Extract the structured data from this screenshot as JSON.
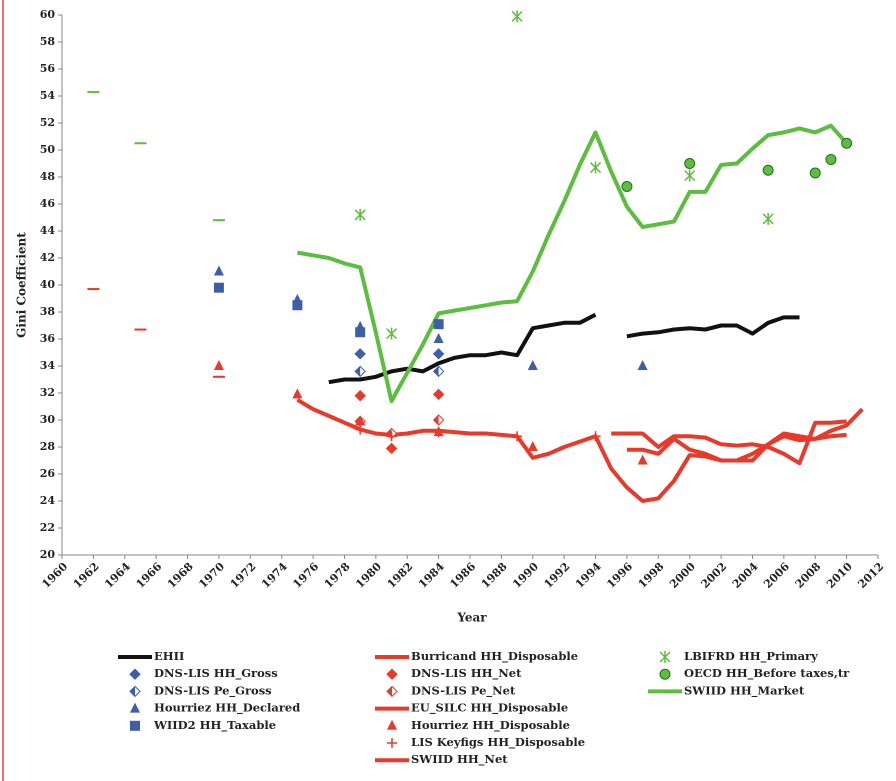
{
  "chart_data": {
    "type": "line",
    "y_label": "Gini Coefficient",
    "x_label": "Year",
    "xlim": [
      1960,
      2012
    ],
    "xticks": [
      1960,
      1962,
      1964,
      1966,
      1968,
      1970,
      1972,
      1974,
      1976,
      1978,
      1980,
      1982,
      1984,
      1986,
      1988,
      1990,
      1992,
      1994,
      1996,
      1998,
      2000,
      2002,
      2004,
      2006,
      2008,
      2010,
      2012
    ],
    "ylim": [
      20,
      60
    ],
    "yticks": [
      20,
      22,
      24,
      26,
      28,
      30,
      32,
      34,
      36,
      38,
      40,
      42,
      44,
      46,
      48,
      50,
      52,
      54,
      56,
      58,
      60
    ],
    "grid": false,
    "series": [
      {
        "name": "EHII",
        "color": "#111111",
        "marker": "line",
        "x": [
          1977,
          1978,
          1979,
          1980,
          1981,
          1982,
          1983,
          1984,
          1985,
          1986,
          1987,
          1988,
          1989,
          1990,
          1991,
          1992,
          1993,
          1994,
          1995,
          1996,
          1997,
          1998,
          1999,
          2000,
          2001,
          2002,
          2003,
          2004,
          2005,
          2006,
          2007
        ],
        "values": [
          32.8,
          33.0,
          33.0,
          33.2,
          33.6,
          33.8,
          33.6,
          34.2,
          34.6,
          34.8,
          34.8,
          35.0,
          34.8,
          36.8,
          37.0,
          37.2,
          37.2,
          37.8,
          null,
          36.2,
          36.4,
          36.5,
          36.7,
          36.8,
          36.7,
          37.0,
          37.0,
          36.4,
          37.2,
          37.6,
          37.6
        ]
      },
      {
        "name": "DNS-LIS HH_Gross",
        "color": "#3f5ea8",
        "marker": "diamond",
        "x": [
          1979,
          1984
        ],
        "values": [
          34.9,
          34.9
        ]
      },
      {
        "name": "DNS-LIS Pe_Gross",
        "color": "#3f5ea8",
        "marker": "diamond-open",
        "x": [
          1979,
          1984
        ],
        "values": [
          33.6,
          33.6
        ]
      },
      {
        "name": "Hourriez HH_Declared",
        "color": "#3f5ea8",
        "marker": "triangle",
        "x": [
          1970,
          1975,
          1979,
          1984,
          1990,
          1997
        ],
        "values": [
          41.0,
          38.9,
          36.9,
          36.0,
          34.0,
          34.0
        ]
      },
      {
        "name": "WIID2 HH_Taxable",
        "color": "#3f5ea8",
        "marker": "square",
        "x": [
          1970,
          1975,
          1979,
          1984
        ],
        "values": [
          39.8,
          38.5,
          36.5,
          37.1
        ]
      },
      {
        "name": "Burricand HH_Disposable",
        "color": "#e8392a",
        "marker": "line",
        "x": [
          1996,
          1997,
          1998,
          1999,
          2000,
          2001,
          2002,
          2003,
          2004,
          2005,
          2006,
          2007,
          2008,
          2009,
          2010,
          2011
        ],
        "values": [
          27.8,
          27.8,
          27.5,
          28.6,
          27.8,
          27.5,
          27.0,
          27.0,
          27.0,
          28.2,
          29.0,
          28.8,
          28.6,
          29.2,
          29.6,
          30.8
        ]
      },
      {
        "name": "DNS-LIS HH_Net",
        "color": "#e8392a",
        "marker": "diamond",
        "x": [
          1979,
          1981,
          1984
        ],
        "values": [
          31.8,
          27.9,
          31.9
        ]
      },
      {
        "name": "DNS-LIS Pe_Net",
        "color": "#e8392a",
        "marker": "diamond-open",
        "x": [
          1979,
          1981,
          1984
        ],
        "values": [
          29.9,
          29.0,
          30.0
        ]
      },
      {
        "name": "EU_SILC HH_Disposable",
        "color": "#e8392a",
        "marker": "line",
        "x": [
          1995,
          1996,
          1997,
          1998,
          1999,
          2000,
          2001,
          2002,
          2003,
          2004,
          2005,
          2006,
          2007,
          2008,
          2009,
          2010
        ],
        "values": [
          29.0,
          29.0,
          29.0,
          28.0,
          28.8,
          28.8,
          28.7,
          28.2,
          28.1,
          28.2,
          28.0,
          27.5,
          26.8,
          29.8,
          29.8,
          29.9
        ]
      },
      {
        "name": "Hourriez HH_Disposable",
        "color": "#e8392a",
        "marker": "triangle",
        "x": [
          1970,
          1975,
          1979,
          1984,
          1990,
          1997
        ],
        "values": [
          34.0,
          31.9,
          29.9,
          29.1,
          28.0,
          27.0
        ]
      },
      {
        "name": "LIS Keyfigs HH_Disposable",
        "color": "#e8392a",
        "marker": "plus",
        "x": [
          1979,
          1981,
          1984,
          1989,
          1994
        ],
        "values": [
          29.3,
          28.8,
          29.1,
          28.8,
          28.8
        ]
      },
      {
        "name": "SWIID HH_Net",
        "color": "#e8392a",
        "marker": "line",
        "x": [
          1975,
          1976,
          1977,
          1978,
          1979,
          1980,
          1981,
          1982,
          1983,
          1984,
          1985,
          1986,
          1987,
          1988,
          1989,
          1990,
          1991,
          1992,
          1993,
          1994,
          1995,
          1996,
          1997,
          1998,
          1999,
          2000,
          2001,
          2002,
          2003,
          2004,
          2005,
          2006,
          2007,
          2008,
          2009,
          2010
        ],
        "values": [
          31.5,
          30.8,
          30.3,
          29.8,
          29.3,
          29.0,
          28.9,
          29.0,
          29.2,
          29.2,
          29.1,
          29.0,
          29.0,
          28.9,
          28.8,
          27.2,
          27.5,
          28.0,
          28.4,
          28.8,
          26.4,
          25.0,
          24.0,
          24.2,
          25.5,
          27.4,
          27.3,
          27.0,
          27.0,
          27.5,
          28.2,
          28.8,
          28.5,
          28.6,
          28.8,
          28.9
        ]
      },
      {
        "name": "LBIFRD HH_Primary",
        "color": "#5cbd3e",
        "marker": "asterisk",
        "x": [
          1979,
          1981,
          1989,
          1994,
          2000,
          2005
        ],
        "values": [
          45.2,
          36.4,
          59.9,
          48.7,
          48.1,
          44.9
        ]
      },
      {
        "name": "OECD HH_Before taxes,tr",
        "color": "#5cbd3e",
        "marker": "circle",
        "x": [
          1996,
          2000,
          2005,
          2008,
          2009,
          2010
        ],
        "values": [
          47.3,
          49.0,
          48.5,
          48.3,
          49.3,
          50.5
        ]
      },
      {
        "name": "SWIID HH_Market",
        "color": "#5cbd3e",
        "marker": "line",
        "x": [
          1975,
          1976,
          1977,
          1978,
          1979,
          1980,
          1981,
          1982,
          1983,
          1984,
          1985,
          1986,
          1987,
          1988,
          1989,
          1990,
          1991,
          1992,
          1993,
          1994,
          1995,
          1996,
          1997,
          1998,
          1999,
          2000,
          2001,
          2002,
          2003,
          2004,
          2005,
          2006,
          2007,
          2008,
          2009,
          2010
        ],
        "values": [
          42.4,
          42.2,
          42.0,
          41.6,
          41.3,
          36.5,
          31.4,
          33.5,
          35.6,
          37.9,
          38.1,
          38.3,
          38.5,
          38.7,
          38.8,
          41.0,
          43.7,
          46.2,
          48.9,
          51.3,
          48.4,
          45.8,
          44.3,
          44.5,
          44.7,
          46.9,
          46.9,
          48.9,
          49.0,
          50.1,
          51.1,
          51.3,
          51.6,
          51.3,
          51.8,
          50.5
        ]
      },
      {
        "color": "#e8392a",
        "marker": "dash",
        "x": [
          1962,
          1965,
          1970
        ],
        "values": [
          39.7,
          36.7,
          33.2
        ]
      },
      {
        "color": "#5cbd3e",
        "marker": "dash",
        "x": [
          1962,
          1965,
          1970
        ],
        "values": [
          54.3,
          50.5,
          44.8
        ]
      }
    ]
  }
}
